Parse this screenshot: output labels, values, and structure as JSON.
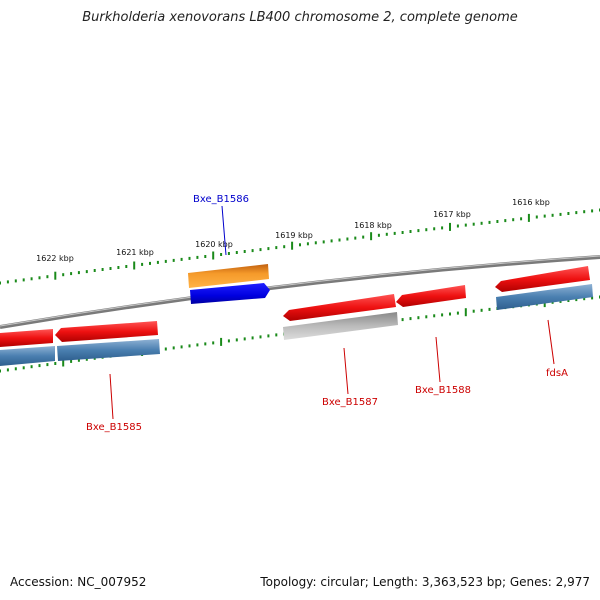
{
  "title": "Burkholderia xenovorans LB400 chromosome 2, complete genome",
  "footer": {
    "accession": "Accession: NC_007952",
    "summary": "Topology: circular; Length: 3,363,523 bp; Genes: 2,977"
  },
  "ticks": [
    "1622 kbp",
    "1621 kbp",
    "1620 kbp",
    "1619 kbp",
    "1618 kbp",
    "1617 kbp",
    "1616 kbp"
  ],
  "gene_labels": [
    {
      "name": "Bxe_B1586",
      "color": "#0000cc"
    },
    {
      "name": "Bxe_B1585",
      "color": "#cc0000"
    },
    {
      "name": "Bxe_B1587",
      "color": "#cc0000"
    },
    {
      "name": "Bxe_B1588",
      "color": "#cc0000"
    },
    {
      "name": "fdsA",
      "color": "#cc0000"
    }
  ],
  "colors": {
    "gene": "#ee1111",
    "cds": "#4a7fb0",
    "tick": "#1a8a1a",
    "backbone": "#777777",
    "highlight_gene": "#f08a1a",
    "highlight_cds": "#1010e0",
    "pseudo": "#a8a8a8"
  }
}
